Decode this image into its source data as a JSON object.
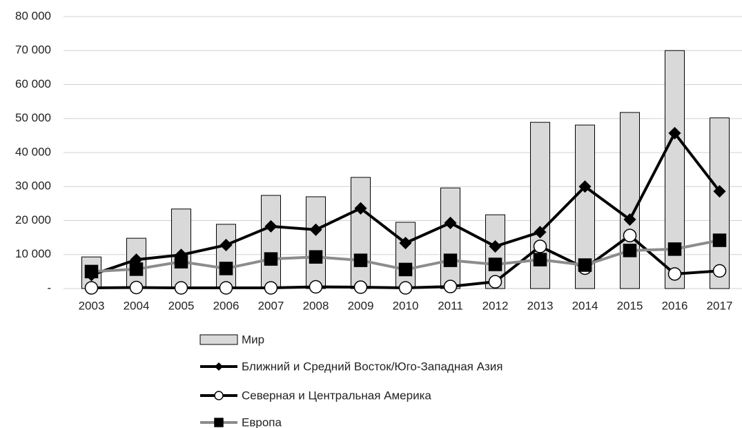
{
  "chart_data": {
    "type": "combo",
    "categories": [
      "2003",
      "2004",
      "2005",
      "2006",
      "2007",
      "2008",
      "2009",
      "2010",
      "2011",
      "2012",
      "2013",
      "2014",
      "2015",
      "2016",
      "2017"
    ],
    "ylim": [
      0,
      80000
    ],
    "yticks": [
      {
        "value": 0,
        "label": "-"
      },
      {
        "value": 10000,
        "label": "10 000"
      },
      {
        "value": 20000,
        "label": "20 000"
      },
      {
        "value": 30000,
        "label": "30 000"
      },
      {
        "value": 40000,
        "label": "40 000"
      },
      {
        "value": 50000,
        "label": "50 000"
      },
      {
        "value": 60000,
        "label": "60 000"
      },
      {
        "value": 70000,
        "label": "70 000"
      },
      {
        "value": 80000,
        "label": "80 000"
      }
    ],
    "grid": true,
    "legend": "bottom",
    "series": [
      {
        "name": "Мир",
        "type": "bar",
        "color": "#d9d9d9",
        "values": [
          9300,
          14800,
          23400,
          18900,
          27400,
          27000,
          32700,
          19500,
          29600,
          21700,
          48900,
          48100,
          51800,
          70000,
          50200
        ]
      },
      {
        "name": "Ближний и Средний Восток/Юго-Западная Азия",
        "type": "line",
        "color": "#000000",
        "marker": "diamond",
        "marker_color": "#000000",
        "values": [
          4000,
          8500,
          9900,
          12800,
          18300,
          17300,
          23600,
          13400,
          19300,
          12400,
          16600,
          30000,
          20300,
          45700,
          28600
        ]
      },
      {
        "name": "Северная и Центральная Америка",
        "type": "line",
        "color": "#000000",
        "marker": "circle",
        "marker_color": "#ffffff",
        "values": [
          200,
          300,
          200,
          200,
          200,
          500,
          400,
          200,
          600,
          2000,
          12400,
          6000,
          15600,
          4300,
          5200
        ]
      },
      {
        "name": "Европа",
        "type": "line",
        "color": "#8c8c8c",
        "marker": "square",
        "marker_color": "#000000",
        "values": [
          5000,
          5700,
          7900,
          5900,
          8700,
          9300,
          8300,
          5600,
          8300,
          7100,
          8500,
          6900,
          11200,
          11600,
          14200
        ]
      }
    ]
  }
}
